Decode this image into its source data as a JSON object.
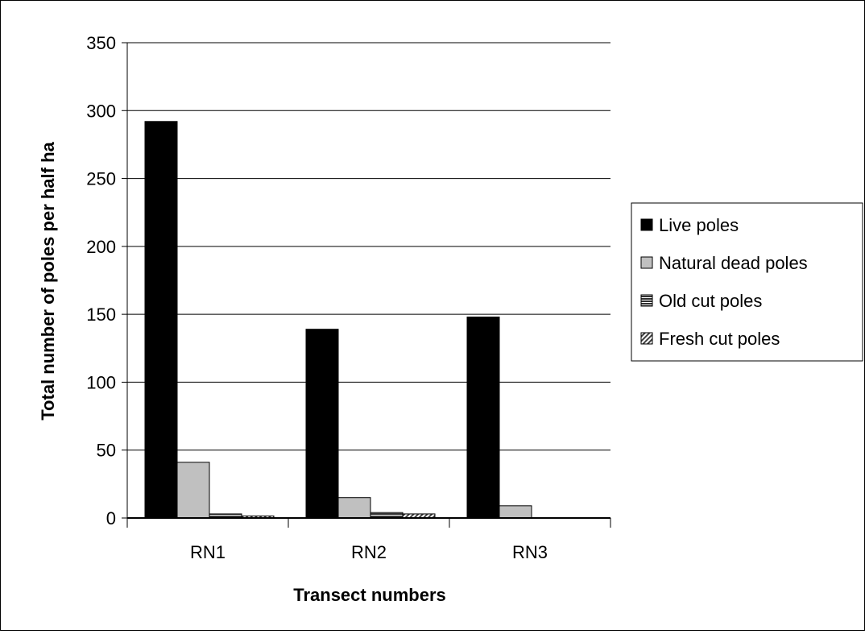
{
  "chart_data": {
    "type": "bar",
    "title": "",
    "xlabel": "Transect numbers",
    "ylabel": "Total number of poles per half ha",
    "ylim": [
      0,
      350
    ],
    "yticks": [
      0,
      50,
      100,
      150,
      200,
      250,
      300,
      350
    ],
    "grid": true,
    "legend_position": "right",
    "categories": [
      "RN1",
      "RN2",
      "RN3"
    ],
    "series": [
      {
        "name": "Live poles",
        "values": [
          292,
          139,
          148
        ],
        "color": "#000000",
        "pattern": "solid"
      },
      {
        "name": "Natural dead poles",
        "values": [
          41,
          15,
          9
        ],
        "color": "#c0c0c0",
        "pattern": "solid"
      },
      {
        "name": "Old cut poles",
        "values": [
          3,
          4,
          0
        ],
        "color": "#404040",
        "pattern": "horizontal-lines"
      },
      {
        "name": "Fresh cut poles",
        "values": [
          1.5,
          3,
          0
        ],
        "color": "#808080",
        "pattern": "diagonal-lines"
      }
    ]
  }
}
